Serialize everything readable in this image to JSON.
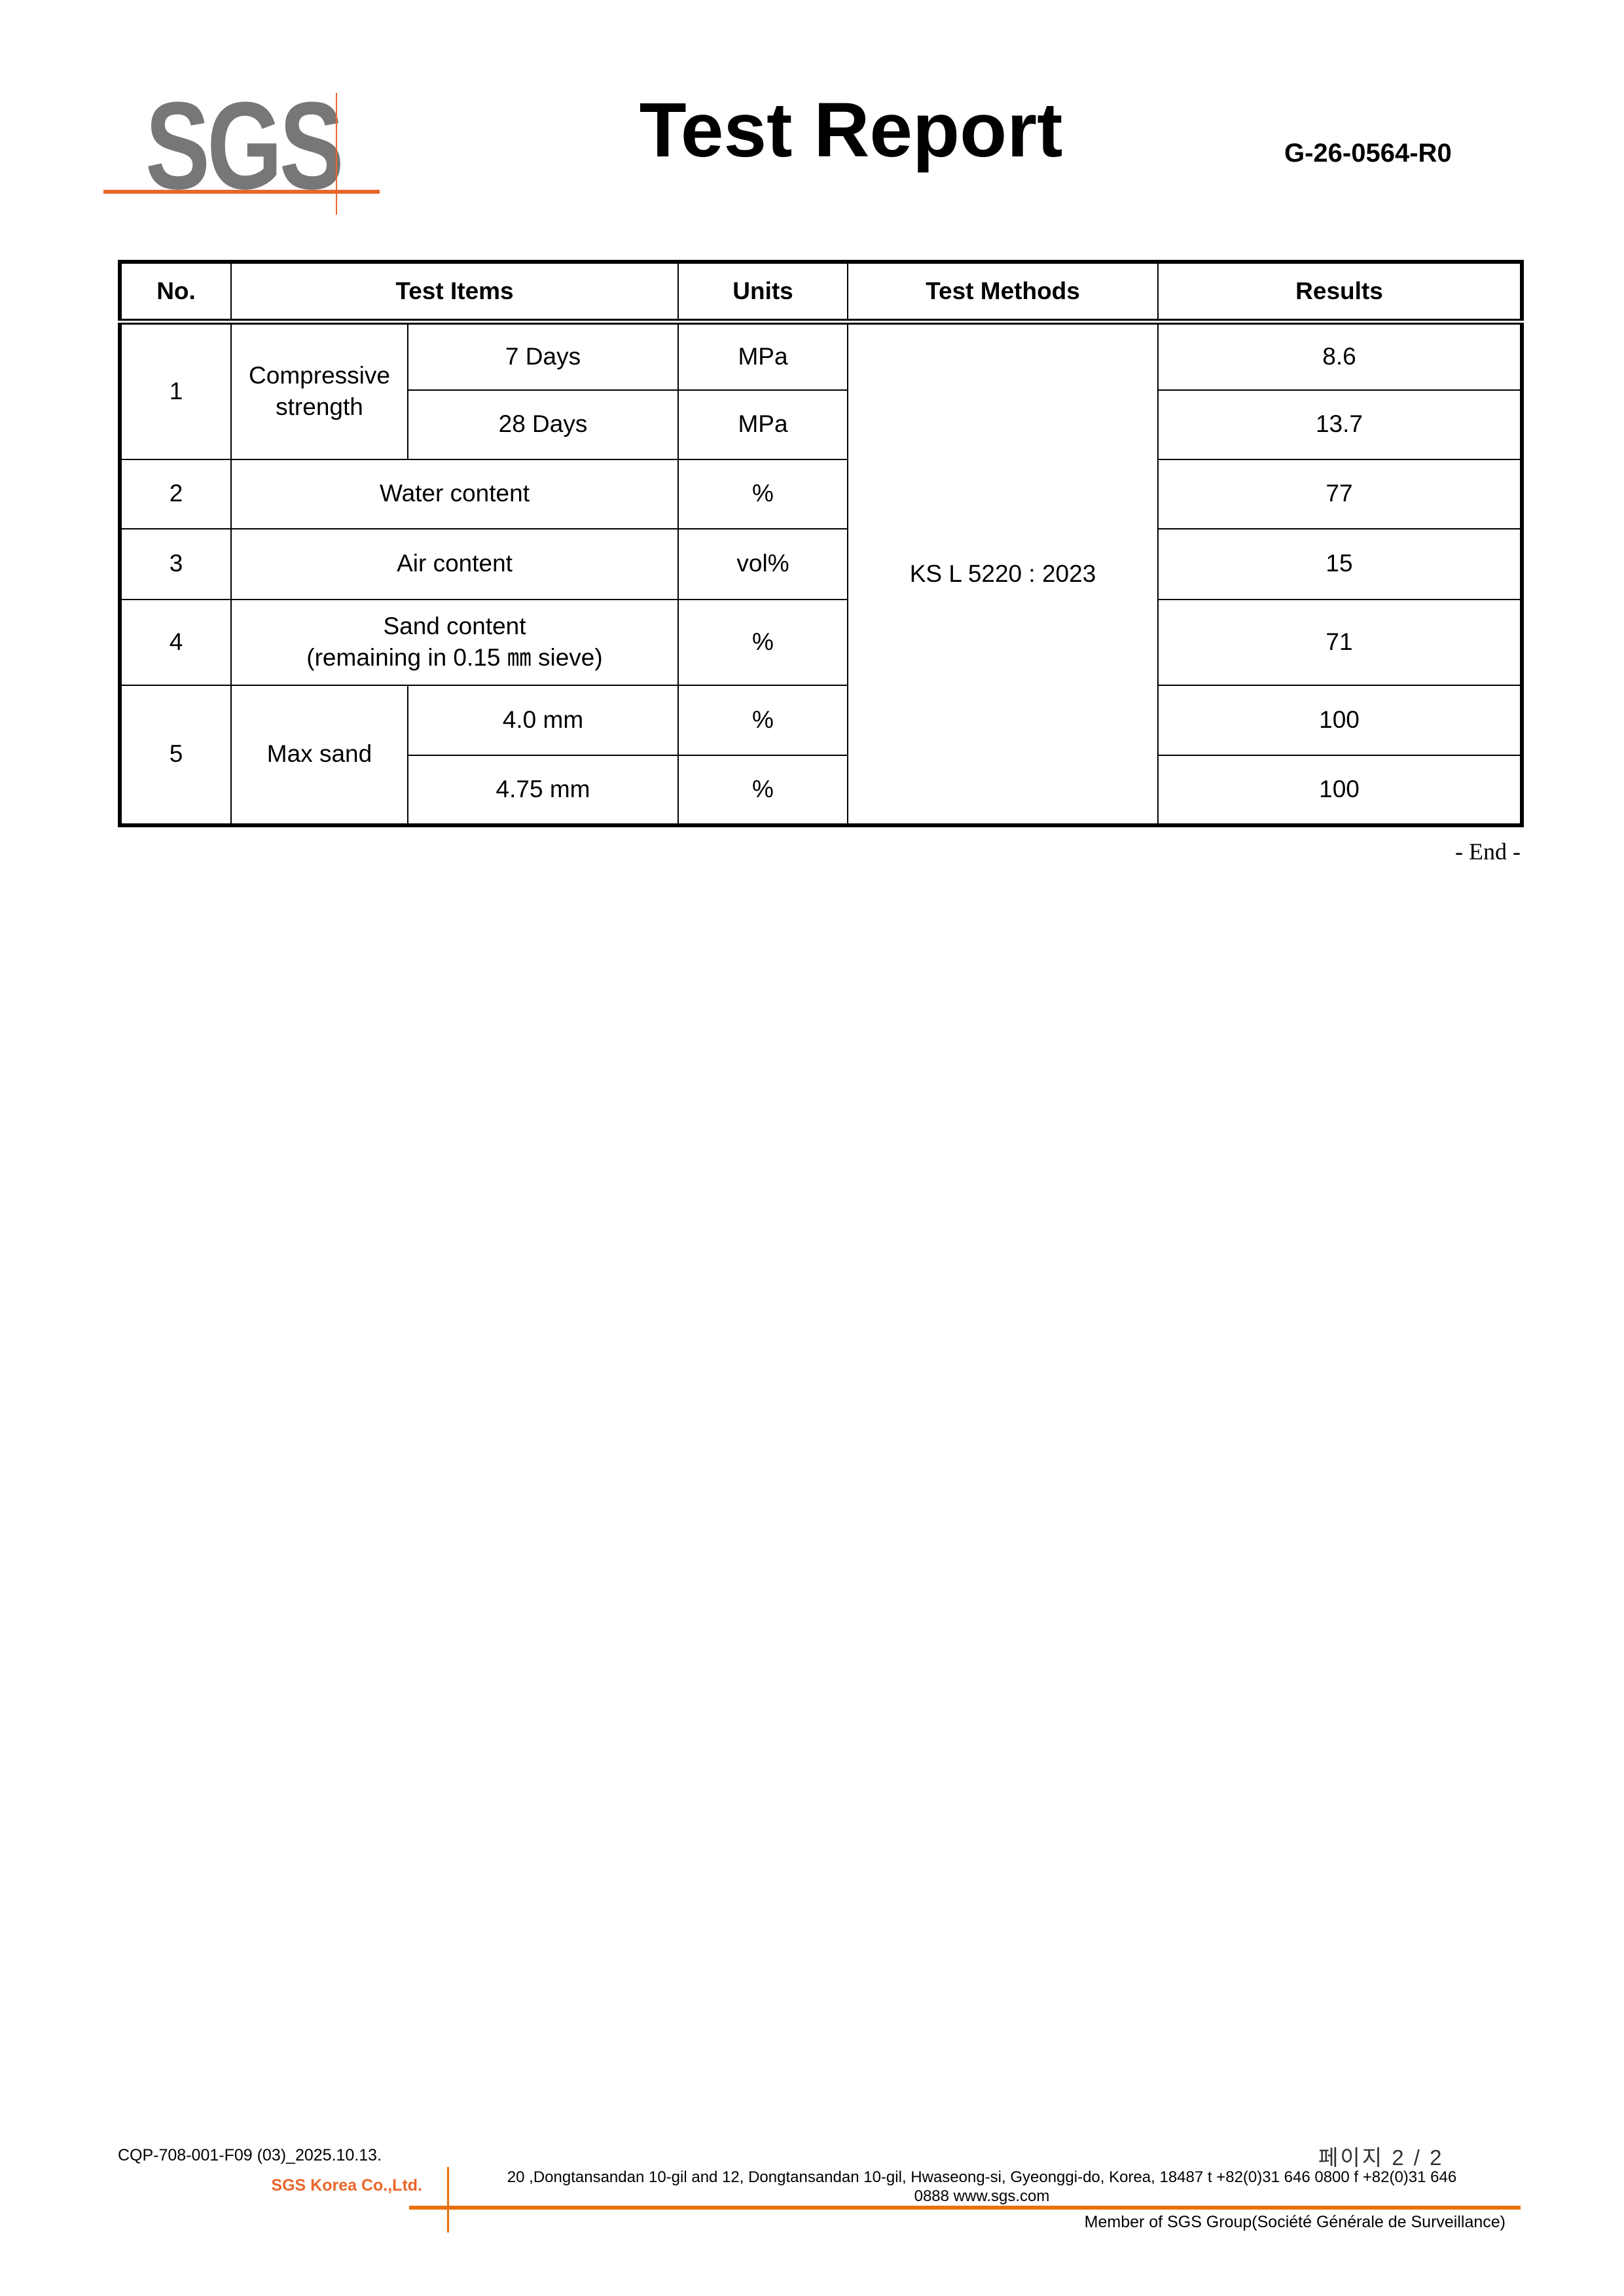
{
  "header": {
    "logo": "SGS",
    "title": "Test Report",
    "report_no": "G-26-0564-R0",
    "brand_color": "#e8672a"
  },
  "table": {
    "columns": [
      "No.",
      "Test Items",
      "Units",
      "Test Methods",
      "Results"
    ],
    "method": "KS L 5220 : 2023",
    "rows": [
      {
        "no": "1",
        "item": "Compressive strength",
        "sub": [
          {
            "label": "7 Days",
            "unit": "MPa",
            "result": "8.6"
          },
          {
            "label": "28 Days",
            "unit": "MPa",
            "result": "13.7"
          }
        ]
      },
      {
        "no": "2",
        "item": "Water content",
        "unit": "%",
        "result": "77"
      },
      {
        "no": "3",
        "item": "Air content",
        "unit": "vol%",
        "result": "15"
      },
      {
        "no": "4",
        "item": "Sand content",
        "item_line2": "(remaining in 0.15 ㎜ sieve)",
        "unit": "%",
        "result": "71"
      },
      {
        "no": "5",
        "item": "Max sand",
        "sub": [
          {
            "label": "4.0 mm",
            "unit": "%",
            "result": "100"
          },
          {
            "label": "4.75 mm",
            "unit": "%",
            "result": "100"
          }
        ]
      }
    ]
  },
  "end_mark": "- End -",
  "footer": {
    "form_code": "CQP-708-001-F09 (03)_2025.10.13.",
    "page": "페이지 2 / 2",
    "company": "SGS Korea Co.,Ltd.",
    "address_line1": "20 ,Dongtansandan 10-gil and 12, Dongtansandan 10-gil, Hwaseong-si, Gyeonggi-do, Korea, 18487    t +82(0)31 646 0800 f +82(0)31 646",
    "address_line2": "0888    www.sgs.com",
    "member": "Member of SGS Group(Société Générale de Surveillance)"
  }
}
